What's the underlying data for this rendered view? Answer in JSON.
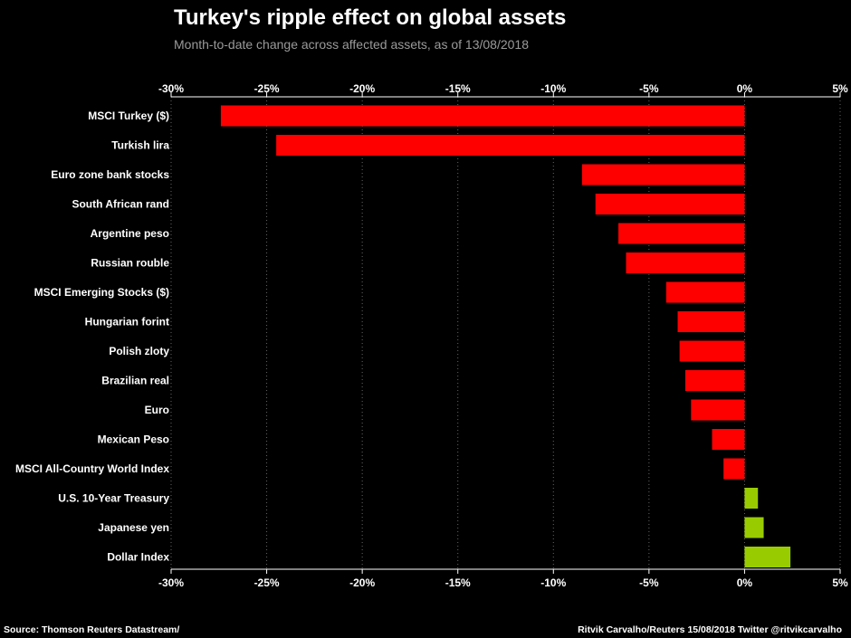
{
  "title": "Turkey's ripple effect on global assets",
  "subtitle": "Month-to-date change across affected assets, as of 13/08/2018",
  "source": "Source: Thomson Reuters Datastream/",
  "credit": "Ritvik Carvalho/Reuters 15/08/2018 Twitter @ritvikcarvalho",
  "colors": {
    "background": "#000000",
    "negative": "#ff0000",
    "positive": "#99cc00",
    "grid": "#666666",
    "text": "#ffffff",
    "subtitle": "#9a9a9a"
  },
  "chart_data": {
    "type": "bar",
    "orientation": "horizontal",
    "title": "Turkey's ripple effect on global assets",
    "subtitle": "Month-to-date change across affected assets, as of 13/08/2018",
    "xlabel": "",
    "ylabel": "",
    "xlim": [
      -30,
      5
    ],
    "tick_values": [
      -30,
      -25,
      -20,
      -15,
      -10,
      -5,
      0,
      5
    ],
    "tick_labels": [
      "-30%",
      "-25%",
      "-20%",
      "-15%",
      "-10%",
      "-5%",
      "0%",
      "5%"
    ],
    "axis_position": "top and bottom",
    "grid": "vertical dotted",
    "legend": "none",
    "categories": [
      "MSCI Turkey ($)",
      "Turkish lira",
      "Euro zone bank stocks",
      "South African rand",
      "Argentine peso",
      "Russian rouble",
      "MSCI Emerging Stocks ($)",
      "Hungarian forint",
      "Polish zloty",
      "Brazilian real",
      "Euro",
      "Mexican Peso",
      "MSCI All-Country World Index",
      "U.S. 10-Year Treasury",
      "Japanese yen",
      "Dollar Index"
    ],
    "values": [
      -27.4,
      -24.5,
      -8.5,
      -7.8,
      -6.6,
      -6.2,
      -4.1,
      -3.5,
      -3.4,
      -3.1,
      -2.8,
      -1.7,
      -1.1,
      0.7,
      1.0,
      2.4
    ]
  }
}
